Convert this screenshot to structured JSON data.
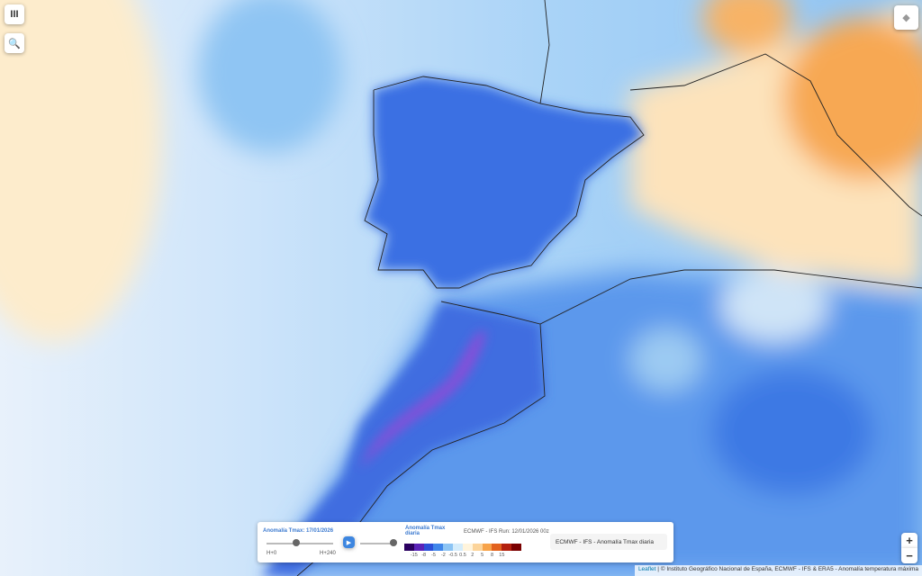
{
  "controls": {
    "layers_button": "III",
    "search_button": "🔍",
    "zoom_in": "+",
    "zoom_out": "−"
  },
  "panel": {
    "title": "Anomalía Tmax: 17/01/2026",
    "slider_start": "H+0",
    "slider_end": "H+240",
    "play": "▶",
    "legend_title": "Anomalía Tmax diaria",
    "run": "ECMWF - IFS Run: 12/01/2026 00z",
    "legend_labels": [
      "-15",
      "-8",
      "-5",
      "-2",
      "-0.5",
      "0.5",
      "2",
      "5",
      "8",
      "15"
    ],
    "legend_colors": [
      "#2a0060",
      "#5a22b8",
      "#2b4fd8",
      "#3f86ea",
      "#8cc4f4",
      "#d4ecfb",
      "#fff4dc",
      "#fcd49a",
      "#f7a34a",
      "#e2621e",
      "#b3200e",
      "#7a0000"
    ],
    "layer_name": "ECMWF - IFS - Anomalía Tmax diaria"
  },
  "attribution": {
    "leaflet": "Leaflet",
    "text": "| © Instituto Geográfico Nacional de España, ECMWF - IFS & ERA5 - Anomalía temperatura máxima"
  }
}
